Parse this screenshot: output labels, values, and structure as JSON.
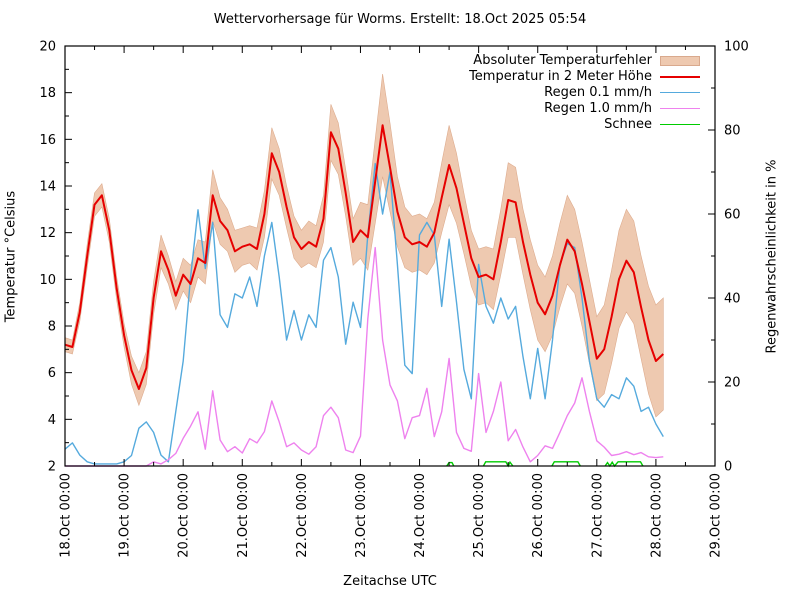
{
  "title": "Wettervorhersage für Worms. Erstellt: 18.Oct 2025 05:54",
  "axes": {
    "x_label": "Zeitachse UTC",
    "y_left_label": "Temperatur °Celsius",
    "y_right_label": "Regenwahrscheinlichkeit in %",
    "y_left_ticks": [
      2,
      4,
      6,
      8,
      10,
      12,
      14,
      16,
      18,
      20
    ],
    "y_right_ticks": [
      0,
      20,
      40,
      60,
      80,
      100
    ],
    "x_tick_labels": [
      "18.Oct 00:00",
      "19.Oct 00:00",
      "20.Oct 00:00",
      "21.Oct 00:00",
      "22.Oct 00:00",
      "23.Oct 00:00",
      "24.Oct 00:00",
      "25.Oct 00:00",
      "26.Oct 00:00",
      "27.Oct 00:00",
      "28.Oct 00:00",
      "29.Oct 00:00"
    ]
  },
  "legend": [
    {
      "label": "Absoluter Temperaturfehler",
      "type": "band",
      "color": "#eec9b0",
      "border": "#d9a98d"
    },
    {
      "label": "Temperatur in 2 Meter Höhe",
      "type": "line",
      "color": "#e60000",
      "thickness": 2
    },
    {
      "label": "Regen 0.1 mm/h",
      "type": "line",
      "color": "#55aadd",
      "thickness": 1.5
    },
    {
      "label": "Regen 1.0 mm/h",
      "type": "line",
      "color": "#ee82ee",
      "thickness": 1.5
    },
    {
      "label": "Schnee",
      "type": "line",
      "color": "#00cc00",
      "thickness": 1.5
    }
  ],
  "chart_data": {
    "type": "line",
    "title": "Wettervorhersage für Worms. Erstellt: 18.Oct 2025 05:54",
    "xlabel": "Zeitachse UTC",
    "ylabel_left": "Temperatur °Celsius",
    "ylabel_right": "Regenwahrscheinlichkeit in %",
    "x_axis_days": [
      "18.Oct",
      "19.Oct",
      "20.Oct",
      "21.Oct",
      "22.Oct",
      "23.Oct",
      "24.Oct",
      "25.Oct",
      "26.Oct",
      "27.Oct",
      "28.Oct",
      "29.Oct"
    ],
    "x_range_days": [
      0,
      11
    ],
    "ylim_left": [
      2,
      20
    ],
    "ylim_right": [
      0,
      100
    ],
    "grid": false,
    "legend_position": "top-right-inside",
    "time_days_start": 0,
    "time_days_step": 0.125,
    "series": [
      {
        "name": "Temperatur in 2 Meter Höhe",
        "axis": "left",
        "unit": "°C",
        "color": "#e60000",
        "values": [
          7.2,
          7.1,
          8.6,
          11.0,
          13.2,
          13.6,
          12.1,
          9.6,
          7.6,
          6.1,
          5.3,
          6.2,
          9.2,
          11.2,
          10.4,
          9.3,
          10.2,
          9.8,
          10.9,
          10.7,
          13.6,
          12.5,
          12.1,
          11.2,
          11.4,
          11.5,
          11.3,
          12.8,
          15.4,
          14.6,
          13.1,
          11.8,
          11.3,
          11.6,
          11.4,
          12.6,
          16.3,
          15.6,
          13.7,
          11.6,
          12.1,
          11.8,
          14.2,
          16.6,
          14.8,
          12.9,
          11.8,
          11.5,
          11.6,
          11.4,
          12.0,
          13.5,
          14.9,
          13.9,
          12.4,
          10.9,
          10.1,
          10.2,
          10.0,
          11.6,
          13.4,
          13.3,
          11.6,
          10.2,
          9.0,
          8.5,
          9.3,
          10.6,
          11.7,
          11.2,
          9.8,
          8.2,
          6.6,
          7.0,
          8.4,
          10.0,
          10.8,
          10.3,
          8.8,
          7.4,
          6.5,
          6.8
        ]
      },
      {
        "name": "Absoluter Temperaturfehler",
        "axis": "left",
        "unit": "±°C halfwidth around temperature",
        "color": "#eec9b0",
        "values": [
          0.3,
          0.3,
          0.4,
          0.5,
          0.5,
          0.5,
          0.5,
          0.5,
          0.5,
          0.6,
          0.7,
          0.7,
          0.7,
          0.7,
          0.6,
          0.6,
          0.7,
          0.8,
          0.8,
          0.9,
          1.1,
          1.0,
          0.9,
          0.9,
          0.8,
          0.8,
          0.9,
          1.0,
          1.1,
          1.0,
          0.9,
          0.9,
          0.8,
          0.9,
          0.9,
          1.0,
          1.2,
          1.1,
          1.0,
          1.0,
          1.2,
          1.4,
          1.8,
          2.2,
          1.9,
          1.5,
          1.3,
          1.2,
          1.2,
          1.2,
          1.3,
          1.5,
          1.7,
          1.5,
          1.3,
          1.2,
          1.2,
          1.2,
          1.3,
          1.4,
          1.6,
          1.5,
          1.4,
          1.5,
          1.6,
          1.6,
          1.7,
          1.8,
          1.9,
          1.8,
          1.8,
          1.8,
          1.8,
          1.9,
          2.0,
          2.1,
          2.2,
          2.2,
          2.2,
          2.3,
          2.4,
          2.4
        ]
      },
      {
        "name": "Regen 0.1 mm/h",
        "axis": "right",
        "unit": "%",
        "color": "#55aadd",
        "values": [
          4,
          5.5,
          2.6,
          1,
          0.5,
          0.5,
          0.5,
          0.5,
          1,
          2.5,
          9,
          10.5,
          8,
          2.6,
          1,
          13,
          25,
          45,
          61,
          47,
          58,
          36,
          33,
          41,
          40,
          45,
          38,
          50,
          58,
          45,
          30,
          37,
          30,
          36,
          33,
          49,
          52,
          45,
          29,
          39,
          33,
          55,
          72,
          60,
          70,
          48,
          24,
          22,
          55,
          58,
          55,
          38,
          54,
          39,
          23,
          16,
          48,
          38,
          34,
          40,
          35,
          38,
          26,
          16,
          28,
          16,
          30,
          48,
          53,
          52,
          40,
          25,
          16,
          14,
          17,
          16,
          21,
          19,
          13,
          14,
          10,
          7
        ]
      },
      {
        "name": "Regen 1.0 mm/h",
        "axis": "right",
        "unit": "%",
        "color": "#ee82ee",
        "values": [
          0,
          0,
          0,
          0,
          0,
          0,
          0,
          0,
          0,
          0,
          0,
          0,
          1,
          0.5,
          1.5,
          3,
          6.6,
          9.5,
          12.9,
          4,
          17.9,
          6.2,
          3.4,
          4.6,
          3.1,
          6.5,
          5.5,
          8.2,
          15.5,
          10.5,
          4.6,
          5.5,
          3.8,
          2.8,
          4.6,
          12,
          14,
          11.5,
          3.8,
          3.2,
          7.1,
          35,
          52,
          30,
          19.3,
          15.5,
          6.5,
          11.5,
          12,
          18.5,
          7,
          12.9,
          25.6,
          8,
          4.2,
          3.5,
          22,
          8,
          13,
          20,
          6,
          8.7,
          4.5,
          1,
          2.5,
          4.8,
          4.2,
          8,
          12,
          15,
          21,
          13,
          6,
          4.5,
          2.5,
          2.8,
          3.4,
          2.7,
          3.2,
          2.2,
          2,
          2.2
        ]
      },
      {
        "name": "Schnee",
        "axis": "right",
        "unit": "%",
        "color": "#00cc00",
        "segments": [
          [
            [
              6.46,
              0
            ],
            [
              6.5,
              0.8
            ],
            [
              6.55,
              0.8
            ],
            [
              6.58,
              0
            ]
          ],
          [
            [
              7.08,
              0
            ],
            [
              7.12,
              1.0
            ],
            [
              7.46,
              1.0
            ],
            [
              7.5,
              0
            ],
            [
              7.53,
              0.9
            ],
            [
              7.58,
              0
            ]
          ],
          [
            [
              8.24,
              0
            ],
            [
              8.28,
              1.0
            ],
            [
              8.68,
              1.0
            ],
            [
              8.72,
              0
            ]
          ],
          [
            [
              9.14,
              0
            ],
            [
              9.18,
              0.8
            ],
            [
              9.22,
              0
            ],
            [
              9.26,
              0.9
            ],
            [
              9.3,
              0
            ],
            [
              9.36,
              1.0
            ],
            [
              9.74,
              1.0
            ],
            [
              9.78,
              0
            ]
          ]
        ]
      }
    ]
  }
}
